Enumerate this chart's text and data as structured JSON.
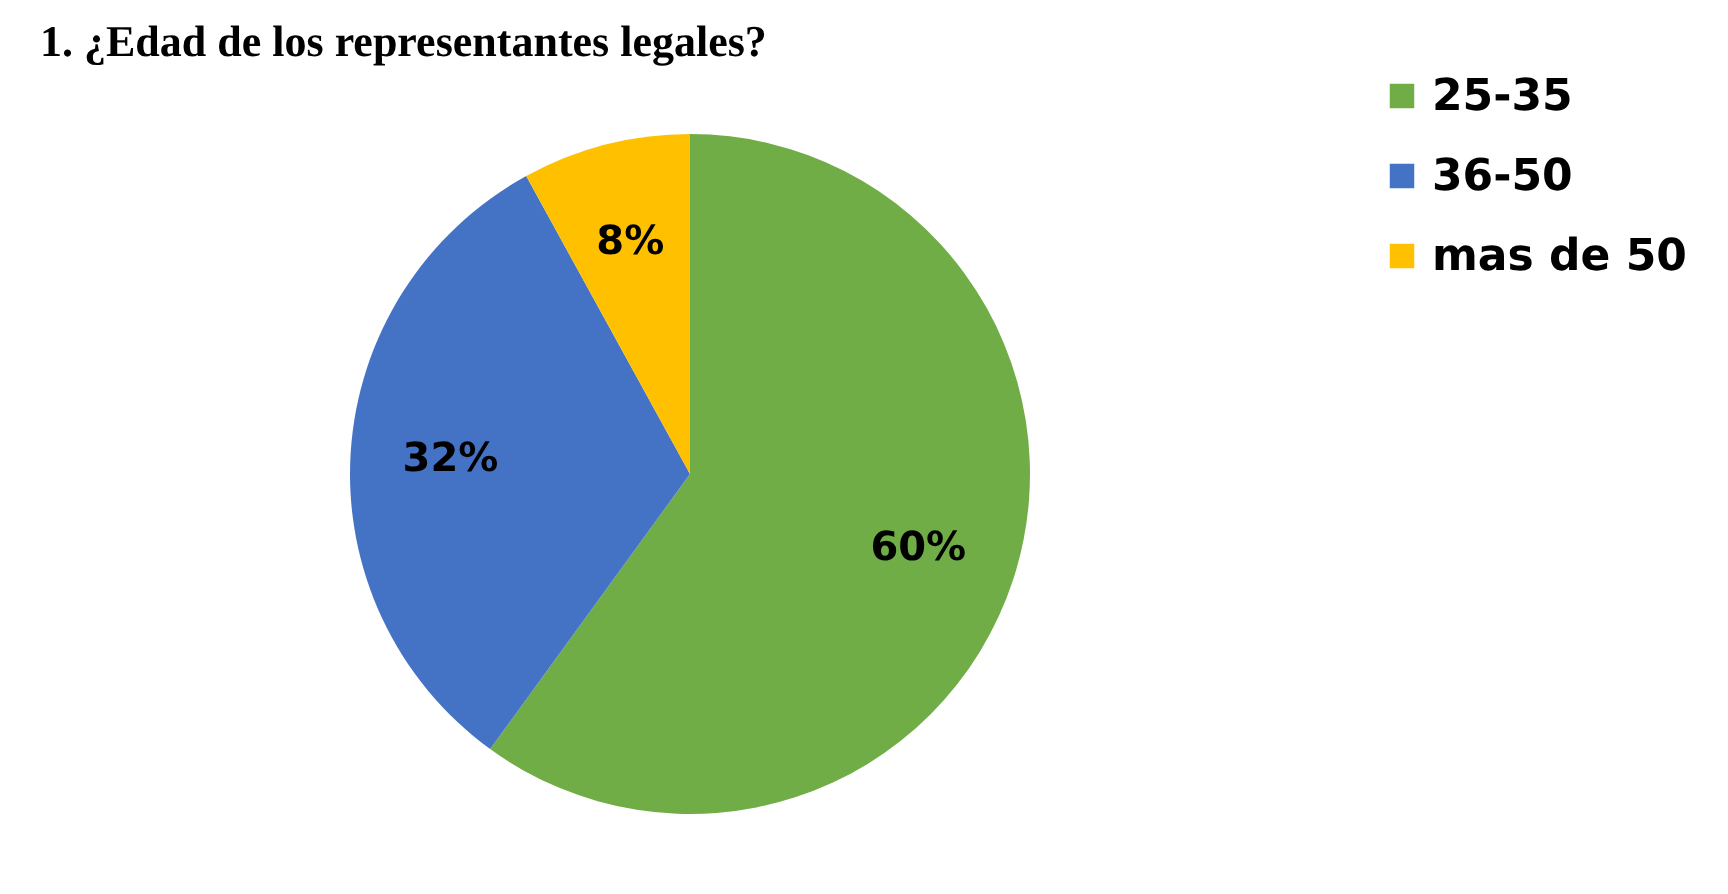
{
  "chart_data": {
    "type": "pie",
    "title": "1. ¿Edad de los representantes legales?",
    "categories": [
      "25-35",
      "36-50",
      "mas de 50"
    ],
    "values": [
      60,
      32,
      8
    ],
    "colors": [
      "#70ad47",
      "#4472c4",
      "#ffc000"
    ],
    "value_labels": [
      "60%",
      "32%",
      "8%"
    ],
    "legend": "right"
  }
}
